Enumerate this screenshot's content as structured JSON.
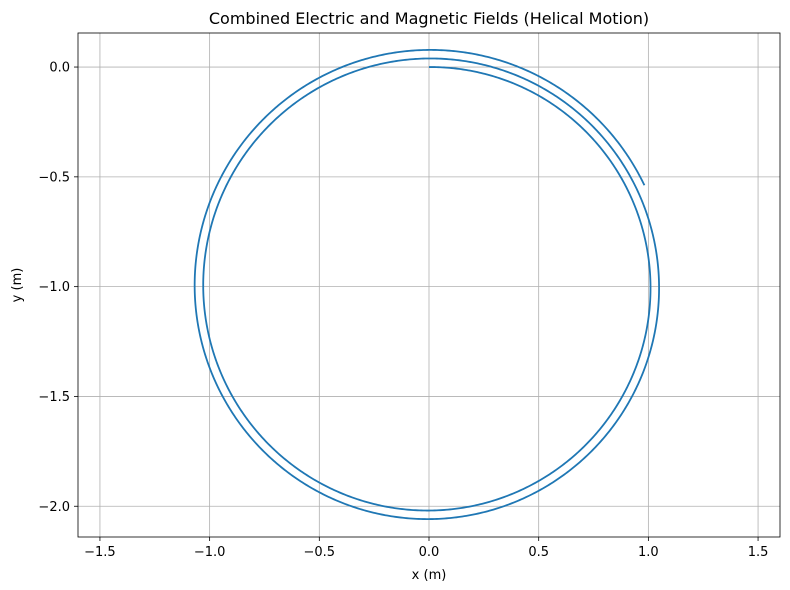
{
  "chart_data": {
    "type": "line",
    "title": "Combined Electric and Magnetic Fields (Helical Motion)",
    "xlabel": "x (m)",
    "ylabel": "y (m)",
    "xlim": [
      -1.6,
      1.6
    ],
    "ylim": [
      -2.14,
      0.155
    ],
    "grid": true,
    "xticks": [
      -1.5,
      -1.0,
      -0.5,
      0.0,
      0.5,
      1.0,
      1.5
    ],
    "xtick_labels": [
      "−1.5",
      "−1.0",
      "−0.5",
      "0.0",
      "0.5",
      "1.0",
      "1.5"
    ],
    "yticks": [
      0.0,
      -0.5,
      -1.0,
      -1.5,
      -2.0
    ],
    "ytick_labels": [
      "0.0",
      "−0.5",
      "−1.0",
      "−1.5",
      "−2.0"
    ],
    "line_color": "#1f77b4",
    "series": [
      {
        "curve": "spiral",
        "center": [
          0.0,
          -1.0
        ],
        "start": [
          0.0,
          0.0
        ],
        "start_radius": 1.0,
        "end_radius": 1.085,
        "turns": 2.65,
        "end": [
          1.0,
          -0.53
        ]
      }
    ]
  }
}
